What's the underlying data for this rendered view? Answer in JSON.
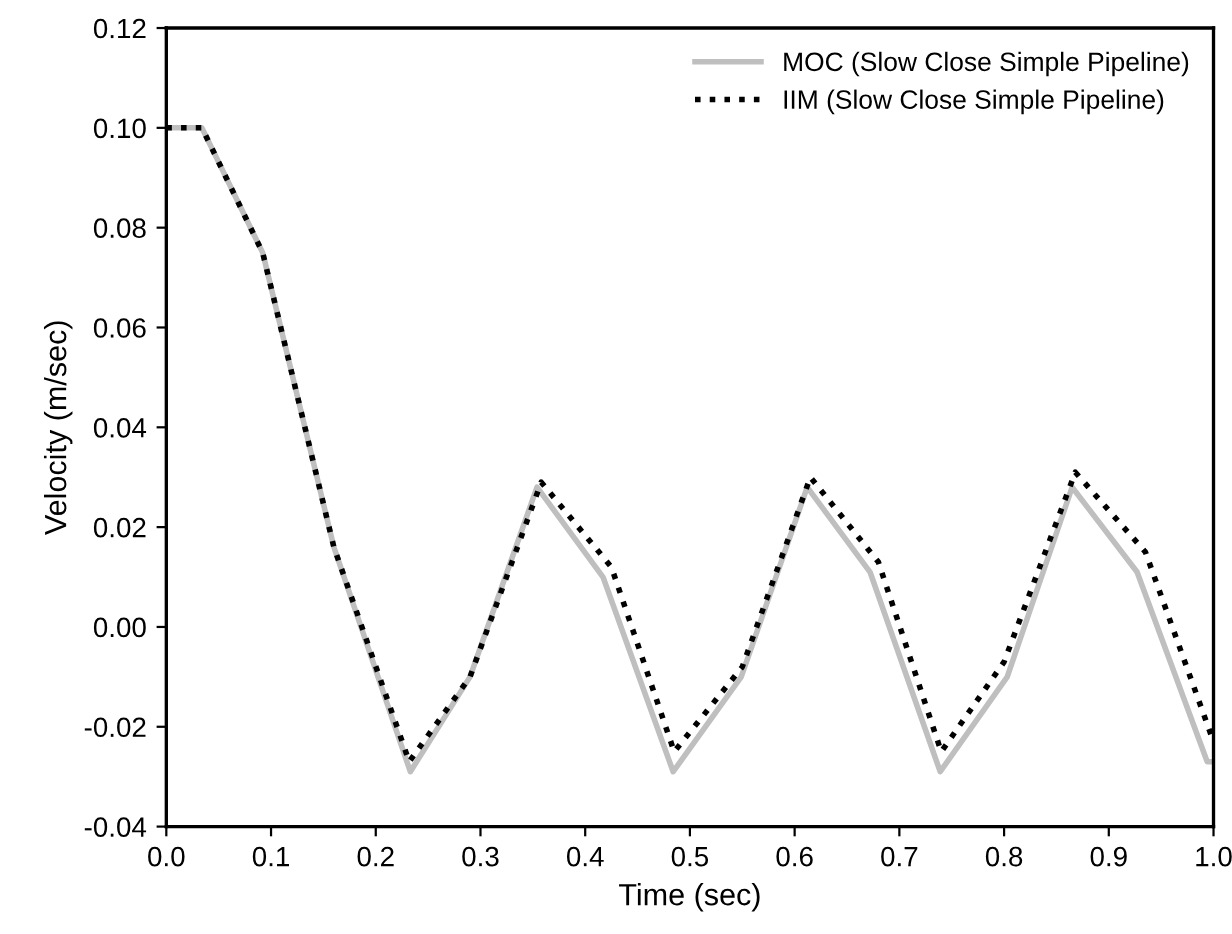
{
  "chart_data": {
    "type": "line",
    "xlabel": "Time (sec)",
    "ylabel": "Velocity (m/sec)",
    "xlim": [
      0.0,
      1.0
    ],
    "xticks": [
      {
        "value": 0,
        "label": "0.0"
      },
      0.1,
      0.2,
      0.3,
      0.4,
      0.5,
      0.6,
      0.7,
      0.8,
      0.9,
      {
        "value": 1,
        "label": "1.0"
      }
    ],
    "ylim": [
      -0.04,
      0.12
    ],
    "yticks": [
      -0.04,
      -0.02,
      {
        "value": 0,
        "label": "0.00"
      },
      0.02,
      0.04,
      0.06,
      0.08,
      {
        "value": 0.1,
        "label": "0.10"
      },
      0.12
    ],
    "legend": "top right",
    "grid": false,
    "series": [
      {
        "name": "MOC (Slow Close Simple Pipeline)",
        "color": "#bfbfbf",
        "line_style": "solid",
        "x": [
          0.0,
          0.034,
          0.092,
          0.16,
          0.233,
          0.29,
          0.354,
          0.417,
          0.484,
          0.549,
          0.612,
          0.672,
          0.739,
          0.803,
          0.865,
          0.927,
          0.994,
          1.0
        ],
        "values": [
          0.1,
          0.1,
          0.075,
          0.016,
          -0.029,
          -0.01,
          0.028,
          0.01,
          -0.029,
          -0.01,
          0.028,
          0.011,
          -0.029,
          -0.01,
          0.028,
          0.011,
          -0.027,
          -0.027
        ]
      },
      {
        "name": "IIM (Slow Close Simple Pipeline)",
        "color": "#000000",
        "line_style": "dotted",
        "x": [
          0.0,
          0.034,
          0.092,
          0.16,
          0.232,
          0.29,
          0.358,
          0.425,
          0.485,
          0.55,
          0.615,
          0.68,
          0.74,
          0.8,
          0.868,
          0.935,
          1.0
        ],
        "values": [
          0.1,
          0.1,
          0.075,
          0.016,
          -0.027,
          -0.01,
          0.029,
          0.012,
          -0.025,
          -0.008,
          0.03,
          0.013,
          -0.025,
          -0.007,
          0.031,
          0.015,
          -0.023
        ]
      }
    ]
  }
}
